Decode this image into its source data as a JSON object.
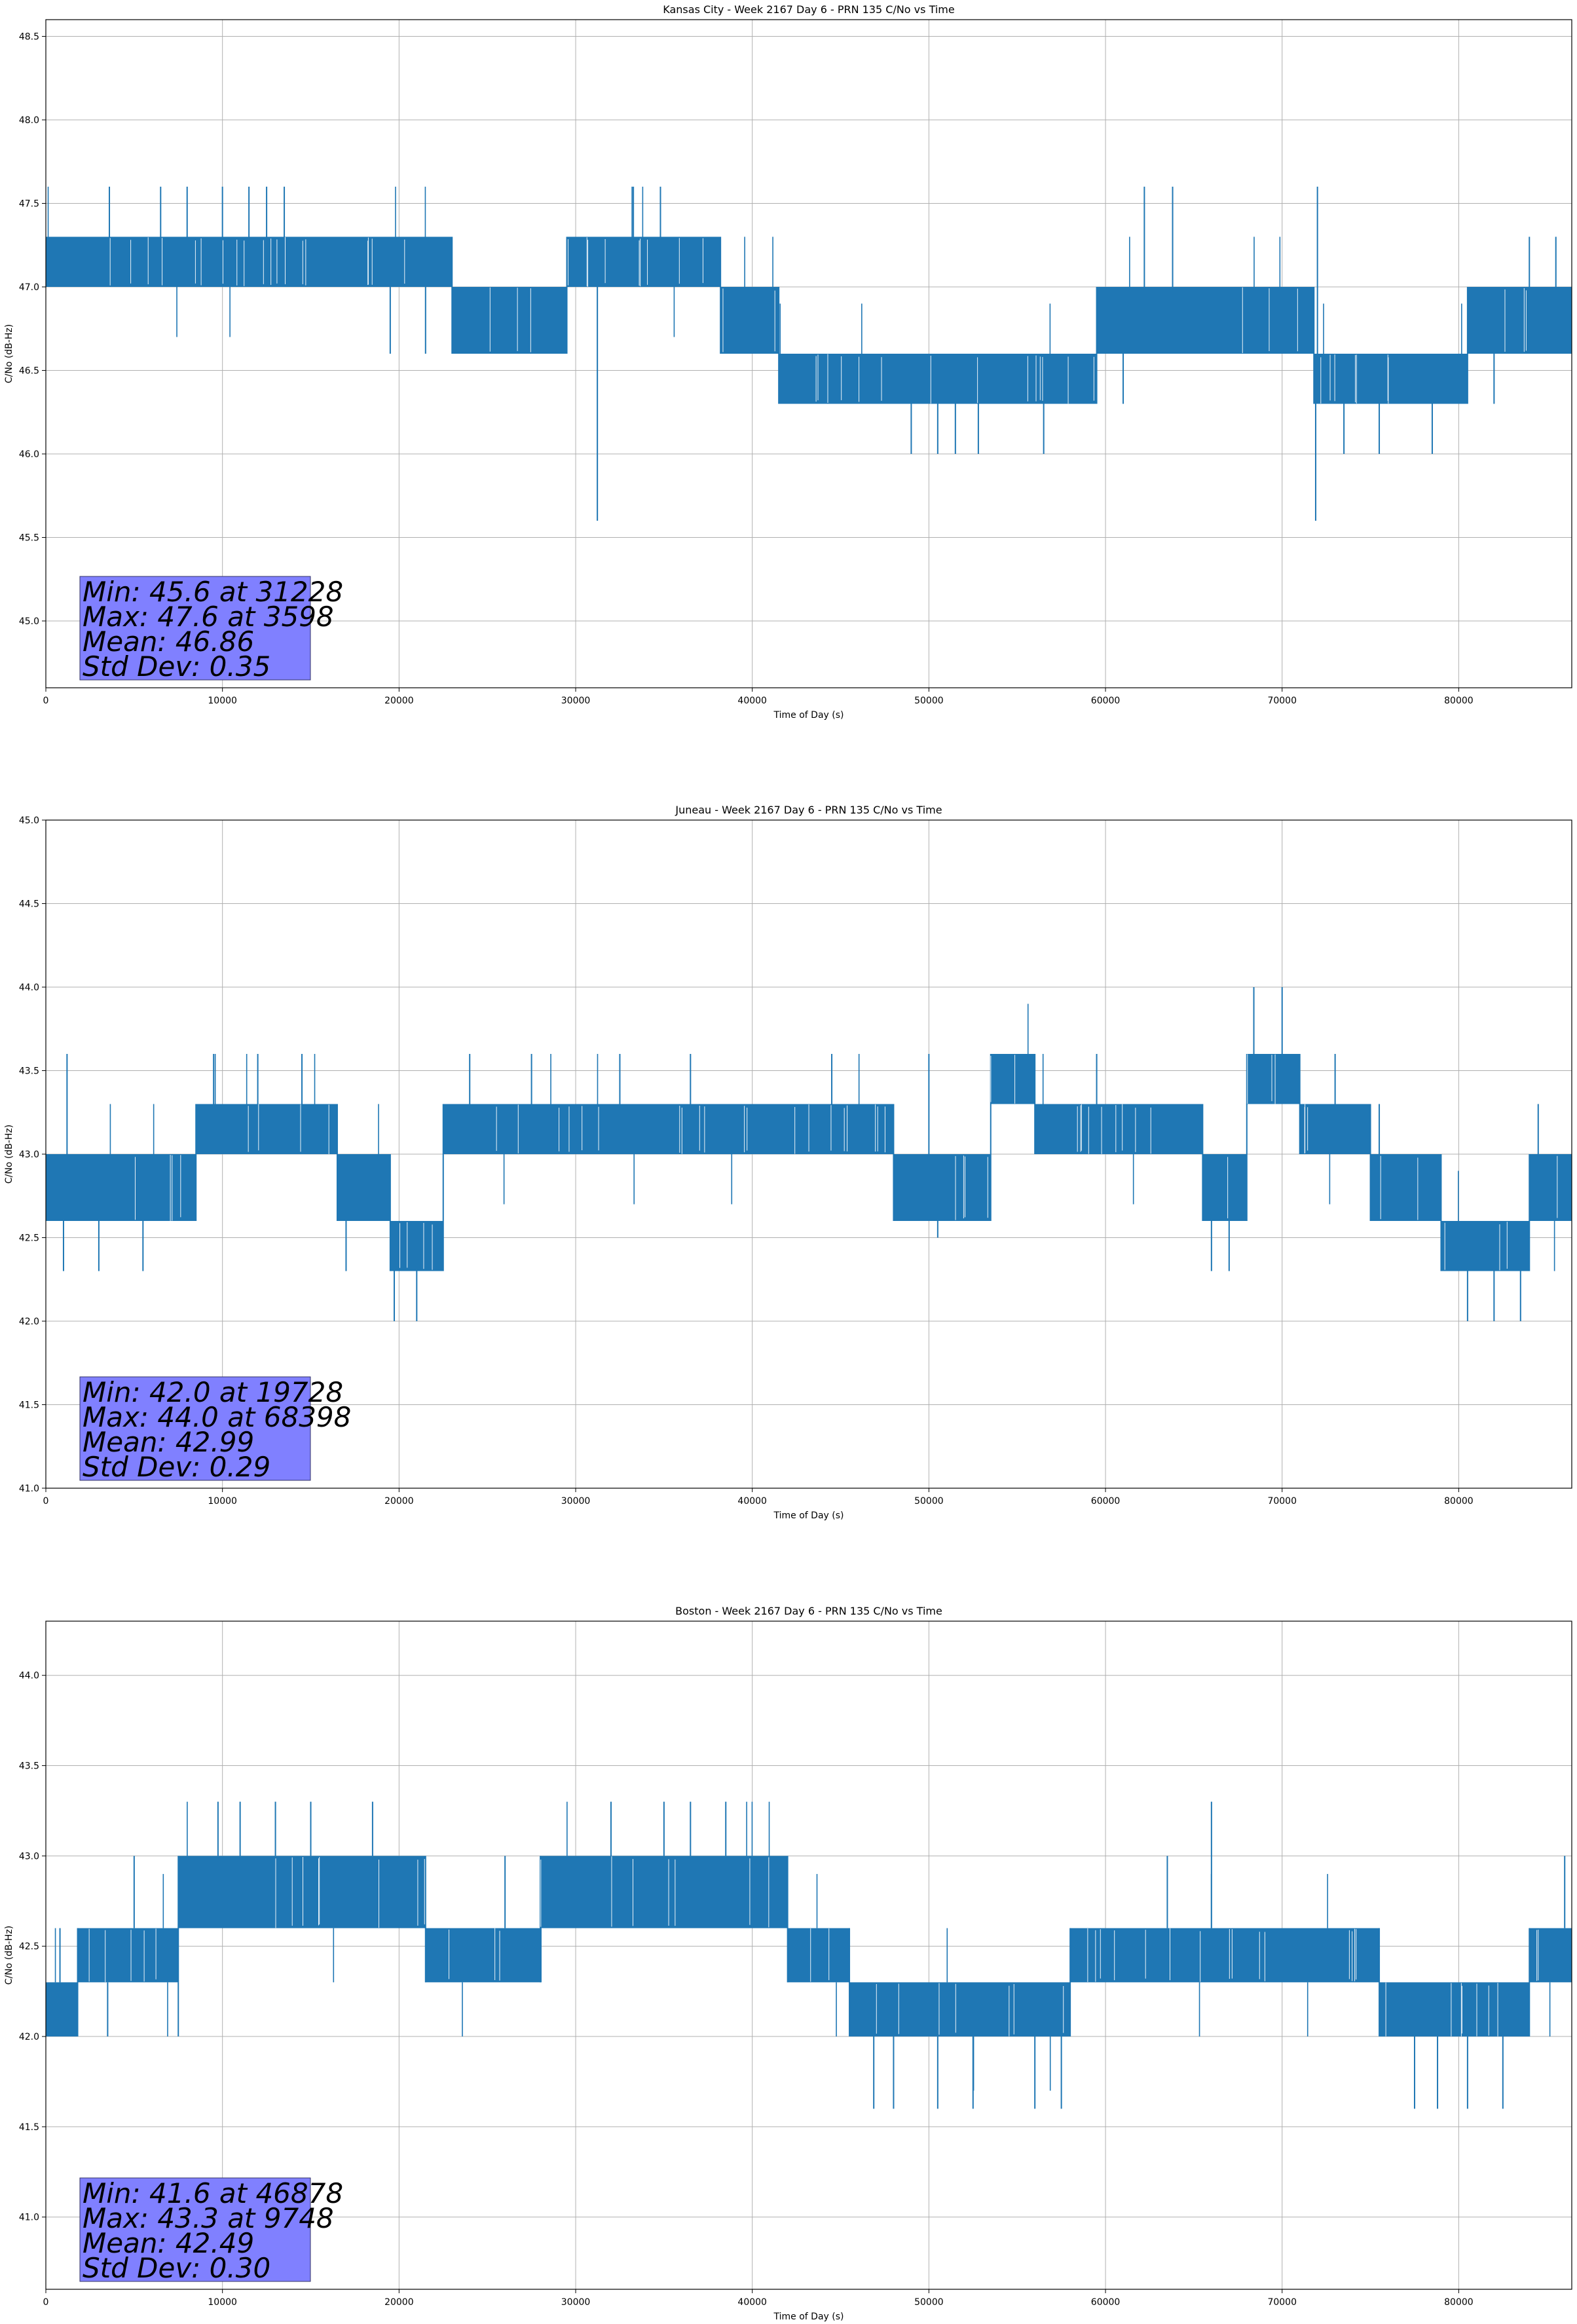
{
  "chart_data": [
    {
      "type": "line",
      "title": "Kansas City - Week 2167 Day 6 - PRN 135 C/No vs Time",
      "xlabel": "Time of Day (s)",
      "ylabel": "C/No (dB-Hz)",
      "xlim": [
        0,
        86400
      ],
      "ylim": [
        44.6,
        48.6
      ],
      "xticks": [
        0,
        10000,
        20000,
        30000,
        40000,
        50000,
        60000,
        70000,
        80000
      ],
      "yticks": [
        45.0,
        45.5,
        46.0,
        46.5,
        47.0,
        47.5,
        48.0,
        48.5
      ],
      "grid": true,
      "color": "#1f77b4",
      "stats_box_color": "#8080ff",
      "stats": [
        "Min: 45.6 at 31228",
        "Max: 47.6 at 3598",
        "Mean: 46.86",
        "Std Dev: 0.35"
      ],
      "series": [
        {
          "name": "C/No",
          "segments": [
            {
              "x0": 0,
              "x1": 23000,
              "low": 47.0,
              "high": 47.3
            },
            {
              "x0": 23000,
              "x1": 29500,
              "low": 46.6,
              "high": 47.0
            },
            {
              "x0": 29500,
              "x1": 38200,
              "low": 47.0,
              "high": 47.3
            },
            {
              "x0": 38200,
              "x1": 41500,
              "low": 46.6,
              "high": 47.0
            },
            {
              "x0": 41500,
              "x1": 59500,
              "low": 46.3,
              "high": 46.6
            },
            {
              "x0": 59500,
              "x1": 71800,
              "low": 46.6,
              "high": 47.0
            },
            {
              "x0": 71800,
              "x1": 80500,
              "low": 46.3,
              "high": 46.6
            },
            {
              "x0": 80500,
              "x1": 86400,
              "low": 46.6,
              "high": 47.0
            }
          ],
          "spikes": [
            [
              31228,
              45.6
            ],
            [
              71900,
              45.6
            ],
            [
              49000,
              46.0
            ],
            [
              50500,
              46.0
            ],
            [
              51500,
              46.0
            ],
            [
              52800,
              46.0
            ],
            [
              56500,
              46.0
            ],
            [
              73500,
              46.0
            ],
            [
              75500,
              46.0
            ],
            [
              78500,
              46.0
            ],
            [
              3598,
              47.6
            ],
            [
              6500,
              47.6
            ],
            [
              8000,
              47.6
            ],
            [
              10000,
              47.6
            ],
            [
              11500,
              47.6
            ],
            [
              12500,
              47.6
            ],
            [
              13500,
              47.6
            ],
            [
              33200,
              47.6
            ],
            [
              34800,
              47.6
            ],
            [
              62200,
              47.6
            ],
            [
              63800,
              47.6
            ],
            [
              72000,
              47.6
            ],
            [
              19500,
              46.6
            ],
            [
              21500,
              46.6
            ],
            [
              44000,
              46.3
            ],
            [
              61000,
              46.3
            ],
            [
              82000,
              46.3
            ],
            [
              84000,
              47.3
            ],
            [
              85500,
              47.3
            ]
          ]
        }
      ]
    },
    {
      "type": "line",
      "title": "Juneau - Week 2167 Day 6 - PRN 135 C/No vs Time",
      "xlabel": "Time of Day (s)",
      "ylabel": "C/No (dB-Hz)",
      "xlim": [
        0,
        86400
      ],
      "ylim": [
        41.0,
        45.0
      ],
      "xticks": [
        0,
        10000,
        20000,
        30000,
        40000,
        50000,
        60000,
        70000,
        80000
      ],
      "yticks": [
        41.0,
        41.5,
        42.0,
        42.5,
        43.0,
        43.5,
        44.0,
        44.5,
        45.0
      ],
      "grid": true,
      "color": "#1f77b4",
      "stats_box_color": "#8080ff",
      "stats": [
        "Min: 42.0 at 19728",
        "Max: 44.0 at 68398",
        "Mean: 42.99",
        "Std Dev: 0.29"
      ],
      "series": [
        {
          "name": "C/No",
          "segments": [
            {
              "x0": 0,
              "x1": 8500,
              "low": 42.6,
              "high": 43.0
            },
            {
              "x0": 8500,
              "x1": 16500,
              "low": 43.0,
              "high": 43.3
            },
            {
              "x0": 16500,
              "x1": 19500,
              "low": 42.6,
              "high": 43.0
            },
            {
              "x0": 19500,
              "x1": 22500,
              "low": 42.3,
              "high": 42.6
            },
            {
              "x0": 22500,
              "x1": 48000,
              "low": 43.0,
              "high": 43.3
            },
            {
              "x0": 48000,
              "x1": 53500,
              "low": 42.6,
              "high": 43.0
            },
            {
              "x0": 53500,
              "x1": 56000,
              "low": 43.3,
              "high": 43.6
            },
            {
              "x0": 56000,
              "x1": 65500,
              "low": 43.0,
              "high": 43.3
            },
            {
              "x0": 65500,
              "x1": 68000,
              "low": 42.6,
              "high": 43.0
            },
            {
              "x0": 68000,
              "x1": 71000,
              "low": 43.3,
              "high": 43.6
            },
            {
              "x0": 71000,
              "x1": 75000,
              "low": 43.0,
              "high": 43.3
            },
            {
              "x0": 75000,
              "x1": 79000,
              "low": 42.6,
              "high": 43.0
            },
            {
              "x0": 79000,
              "x1": 84000,
              "low": 42.3,
              "high": 42.6
            },
            {
              "x0": 84000,
              "x1": 86400,
              "low": 42.6,
              "high": 43.0
            }
          ],
          "spikes": [
            [
              19728,
              42.0
            ],
            [
              21000,
              42.0
            ],
            [
              80500,
              42.0
            ],
            [
              82000,
              42.0
            ],
            [
              83500,
              42.0
            ],
            [
              68398,
              44.0
            ],
            [
              70000,
              44.0
            ],
            [
              1000,
              42.3
            ],
            [
              3000,
              42.3
            ],
            [
              5500,
              42.3
            ],
            [
              17000,
              42.3
            ],
            [
              50500,
              42.5
            ],
            [
              66000,
              42.3
            ],
            [
              67000,
              42.3
            ],
            [
              1200,
              43.6
            ],
            [
              9500,
              43.6
            ],
            [
              12000,
              43.6
            ],
            [
              14500,
              43.6
            ],
            [
              24000,
              43.6
            ],
            [
              27500,
              43.6
            ],
            [
              32500,
              43.6
            ],
            [
              36500,
              43.6
            ],
            [
              44500,
              43.6
            ],
            [
              50000,
              43.6
            ],
            [
              59500,
              43.6
            ],
            [
              73000,
              43.6
            ],
            [
              75500,
              43.3
            ],
            [
              84500,
              43.3
            ]
          ]
        }
      ]
    },
    {
      "type": "line",
      "title": "Boston - Week 2167 Day 6 - PRN 135 C/No vs Time",
      "xlabel": "Time of Day (s)",
      "ylabel": "C/No (dB-Hz)",
      "xlim": [
        0,
        86400
      ],
      "ylim": [
        40.6,
        44.3
      ],
      "xticks": [
        0,
        10000,
        20000,
        30000,
        40000,
        50000,
        60000,
        70000,
        80000
      ],
      "yticks": [
        41.0,
        41.5,
        42.0,
        42.5,
        43.0,
        43.5,
        44.0
      ],
      "grid": true,
      "color": "#1f77b4",
      "stats_box_color": "#8080ff",
      "stats": [
        "Min: 41.6 at 46878",
        "Max: 43.3 at 9748",
        "Mean: 42.49",
        "Std Dev: 0.30"
      ],
      "series": [
        {
          "name": "C/No",
          "segments": [
            {
              "x0": 0,
              "x1": 1800,
              "low": 42.0,
              "high": 42.3
            },
            {
              "x0": 1800,
              "x1": 7500,
              "low": 42.3,
              "high": 42.6
            },
            {
              "x0": 7500,
              "x1": 21500,
              "low": 42.6,
              "high": 43.0
            },
            {
              "x0": 21500,
              "x1": 28000,
              "low": 42.3,
              "high": 42.6
            },
            {
              "x0": 28000,
              "x1": 42000,
              "low": 42.6,
              "high": 43.0
            },
            {
              "x0": 42000,
              "x1": 45500,
              "low": 42.3,
              "high": 42.6
            },
            {
              "x0": 45500,
              "x1": 58000,
              "low": 42.0,
              "high": 42.3
            },
            {
              "x0": 58000,
              "x1": 75500,
              "low": 42.3,
              "high": 42.6
            },
            {
              "x0": 75500,
              "x1": 84000,
              "low": 42.0,
              "high": 42.3
            },
            {
              "x0": 84000,
              "x1": 86400,
              "low": 42.3,
              "high": 42.6
            }
          ],
          "spikes": [
            [
              46878,
              41.6
            ],
            [
              48000,
              41.6
            ],
            [
              50500,
              41.6
            ],
            [
              52500,
              41.6
            ],
            [
              56000,
              41.6
            ],
            [
              57500,
              41.6
            ],
            [
              77500,
              41.6
            ],
            [
              78800,
              41.6
            ],
            [
              80500,
              41.6
            ],
            [
              82500,
              41.6
            ],
            [
              9748,
              43.3
            ],
            [
              11000,
              43.3
            ],
            [
              13000,
              43.3
            ],
            [
              15000,
              43.3
            ],
            [
              18500,
              43.3
            ],
            [
              32000,
              43.3
            ],
            [
              35000,
              43.3
            ],
            [
              36500,
              43.3
            ],
            [
              38500,
              43.3
            ],
            [
              66000,
              43.3
            ],
            [
              3500,
              42.0
            ],
            [
              7500,
              42.0
            ],
            [
              800,
              42.6
            ],
            [
              5000,
              43.0
            ],
            [
              26000,
              43.0
            ],
            [
              63500,
              43.0
            ],
            [
              86000,
              43.0
            ]
          ]
        }
      ]
    }
  ]
}
